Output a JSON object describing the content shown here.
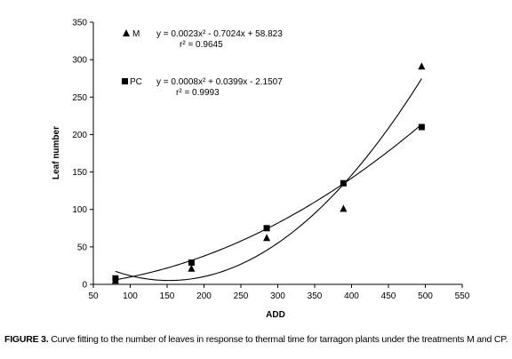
{
  "chart_data": {
    "type": "scatter",
    "title": "",
    "xlabel": "ADD",
    "ylabel": "Leaf number",
    "xlim": [
      50,
      550
    ],
    "ylim": [
      0,
      350
    ],
    "xticks": [
      50,
      100,
      150,
      200,
      250,
      300,
      350,
      400,
      450,
      500,
      550
    ],
    "yticks": [
      0,
      50,
      100,
      150,
      200,
      250,
      300,
      350
    ],
    "grid": false,
    "legend": "top-left",
    "series": [
      {
        "name": "M",
        "marker": "triangle",
        "x": [
          80,
          183,
          285,
          389,
          495
        ],
        "y": [
          5,
          21,
          62,
          101,
          291
        ],
        "fit": {
          "a": 0.0023,
          "b": -0.7024,
          "c": 58.823
        },
        "equation": "y = 0.0023x² - 0.7024x + 58.823",
        "r2": "r² = 0.9645"
      },
      {
        "name": "PC",
        "marker": "square",
        "x": [
          80,
          183,
          285,
          389,
          495
        ],
        "y": [
          8,
          29,
          75,
          135,
          210
        ],
        "fit": {
          "a": 0.0008,
          "b": 0.0399,
          "c": -2.1507
        },
        "equation": "y = 0.0008x² + 0.0399x - 2.1507",
        "r2": "r² = 0.9993"
      }
    ]
  },
  "caption": {
    "figure_label": "FIGURE 3.",
    "text": " Curve fitting to the number of leaves in response to thermal time for tarragon plants under the treatments M and CP."
  }
}
